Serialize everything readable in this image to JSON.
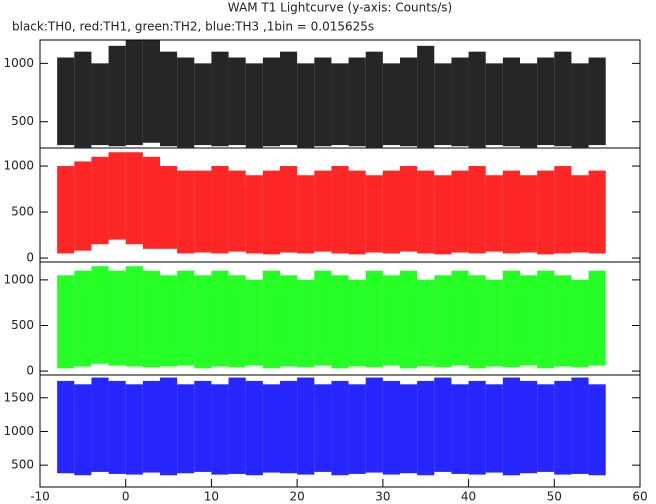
{
  "chart_data": [
    {
      "type": "range",
      "title": "WAM T1 Lightcurve (y-axis: Counts/s)",
      "subtitle": "black:TH0, red:TH1, green:TH2, blue:TH3 ,1bin = 0.015625s",
      "x": [
        -8,
        -6,
        -4,
        -2,
        0,
        2,
        4,
        6,
        8,
        10,
        12,
        14,
        16,
        18,
        20,
        22,
        24,
        26,
        28,
        30,
        32,
        34,
        36,
        38,
        40,
        42,
        44,
        46,
        48,
        50,
        52,
        54
      ],
      "xlim": [
        -10,
        60
      ],
      "ylim": [
        275,
        1200
      ],
      "yticks": [
        500,
        1000
      ],
      "series": [
        {
          "color": "#000000",
          "high": [
            1050,
            1100,
            1000,
            1150,
            1200,
            1200,
            1100,
            1050,
            1000,
            1100,
            1050,
            1000,
            1050,
            1100,
            1000,
            1050,
            1000,
            1050,
            1100,
            1000,
            1050,
            1150,
            1000,
            1050,
            1100,
            1000,
            1050,
            1000,
            1050,
            1100,
            1000,
            1050
          ],
          "low": [
            300,
            280,
            300,
            290,
            300,
            320,
            290,
            280,
            300,
            290,
            300,
            280,
            290,
            300,
            280,
            290,
            300,
            290,
            280,
            300,
            290,
            280,
            300,
            290,
            280,
            300,
            290,
            280,
            300,
            290,
            280,
            300
          ]
        }
      ]
    },
    {
      "type": "range",
      "x": [
        -8,
        -6,
        -4,
        -2,
        0,
        2,
        4,
        6,
        8,
        10,
        12,
        14,
        16,
        18,
        20,
        22,
        24,
        26,
        28,
        30,
        32,
        34,
        36,
        38,
        40,
        42,
        44,
        46,
        48,
        50,
        52,
        54
      ],
      "xlim": [
        -10,
        60
      ],
      "ylim": [
        -43,
        1196
      ],
      "yticks": [
        0,
        500,
        1000
      ],
      "series": [
        {
          "color": "#ff0000",
          "high": [
            1000,
            1050,
            1100,
            1150,
            1150,
            1100,
            1000,
            950,
            950,
            1000,
            950,
            900,
            950,
            1000,
            900,
            950,
            1000,
            950,
            900,
            950,
            1000,
            950,
            900,
            950,
            1000,
            900,
            950,
            900,
            950,
            1000,
            900,
            950
          ],
          "low": [
            50,
            80,
            150,
            200,
            150,
            100,
            100,
            50,
            60,
            50,
            70,
            50,
            40,
            60,
            50,
            70,
            50,
            40,
            60,
            50,
            70,
            50,
            40,
            60,
            50,
            70,
            50,
            60,
            40,
            50,
            60,
            50
          ]
        }
      ]
    },
    {
      "type": "range",
      "x": [
        -8,
        -6,
        -4,
        -2,
        0,
        2,
        4,
        6,
        8,
        10,
        12,
        14,
        16,
        18,
        20,
        22,
        24,
        26,
        28,
        30,
        32,
        34,
        36,
        38,
        40,
        42,
        44,
        46,
        48,
        50,
        52,
        54
      ],
      "xlim": [
        -10,
        60
      ],
      "ylim": [
        -43,
        1196
      ],
      "yticks": [
        0,
        500,
        1000
      ],
      "series": [
        {
          "color": "#00ff00",
          "high": [
            1050,
            1100,
            1150,
            1100,
            1150,
            1100,
            1050,
            1100,
            1050,
            1100,
            1050,
            1000,
            1100,
            1050,
            1000,
            1100,
            1050,
            1000,
            1100,
            1050,
            1100,
            1000,
            1050,
            1100,
            1050,
            1000,
            1100,
            1050,
            1100,
            1050,
            1000,
            1100
          ],
          "low": [
            30,
            50,
            80,
            60,
            50,
            40,
            50,
            60,
            30,
            50,
            40,
            60,
            30,
            50,
            40,
            60,
            30,
            50,
            40,
            60,
            30,
            50,
            40,
            60,
            30,
            50,
            40,
            60,
            30,
            50,
            40,
            60
          ]
        }
      ]
    },
    {
      "type": "range",
      "x": [
        -8,
        -6,
        -4,
        -2,
        0,
        2,
        4,
        6,
        8,
        10,
        12,
        14,
        16,
        18,
        20,
        22,
        24,
        26,
        28,
        30,
        32,
        34,
        36,
        38,
        40,
        42,
        44,
        46,
        48,
        50,
        52,
        54
      ],
      "xlim": [
        -10,
        60
      ],
      "xticks": [
        -10,
        0,
        10,
        20,
        30,
        40,
        50,
        60
      ],
      "ylim": [
        176,
        1838
      ],
      "yticks": [
        500,
        1000,
        1500
      ],
      "series": [
        {
          "color": "#0000ff",
          "high": [
            1750,
            1700,
            1800,
            1750,
            1700,
            1750,
            1800,
            1700,
            1750,
            1700,
            1800,
            1750,
            1700,
            1750,
            1800,
            1700,
            1750,
            1700,
            1800,
            1750,
            1700,
            1750,
            1800,
            1700,
            1750,
            1700,
            1800,
            1750,
            1700,
            1750,
            1800,
            1700
          ],
          "low": [
            380,
            350,
            400,
            370,
            360,
            390,
            350,
            380,
            400,
            360,
            370,
            350,
            390,
            380,
            360,
            400,
            350,
            370,
            390,
            360,
            380,
            350,
            400,
            370,
            360,
            390,
            350,
            380,
            400,
            360,
            370,
            350
          ]
        }
      ]
    }
  ]
}
